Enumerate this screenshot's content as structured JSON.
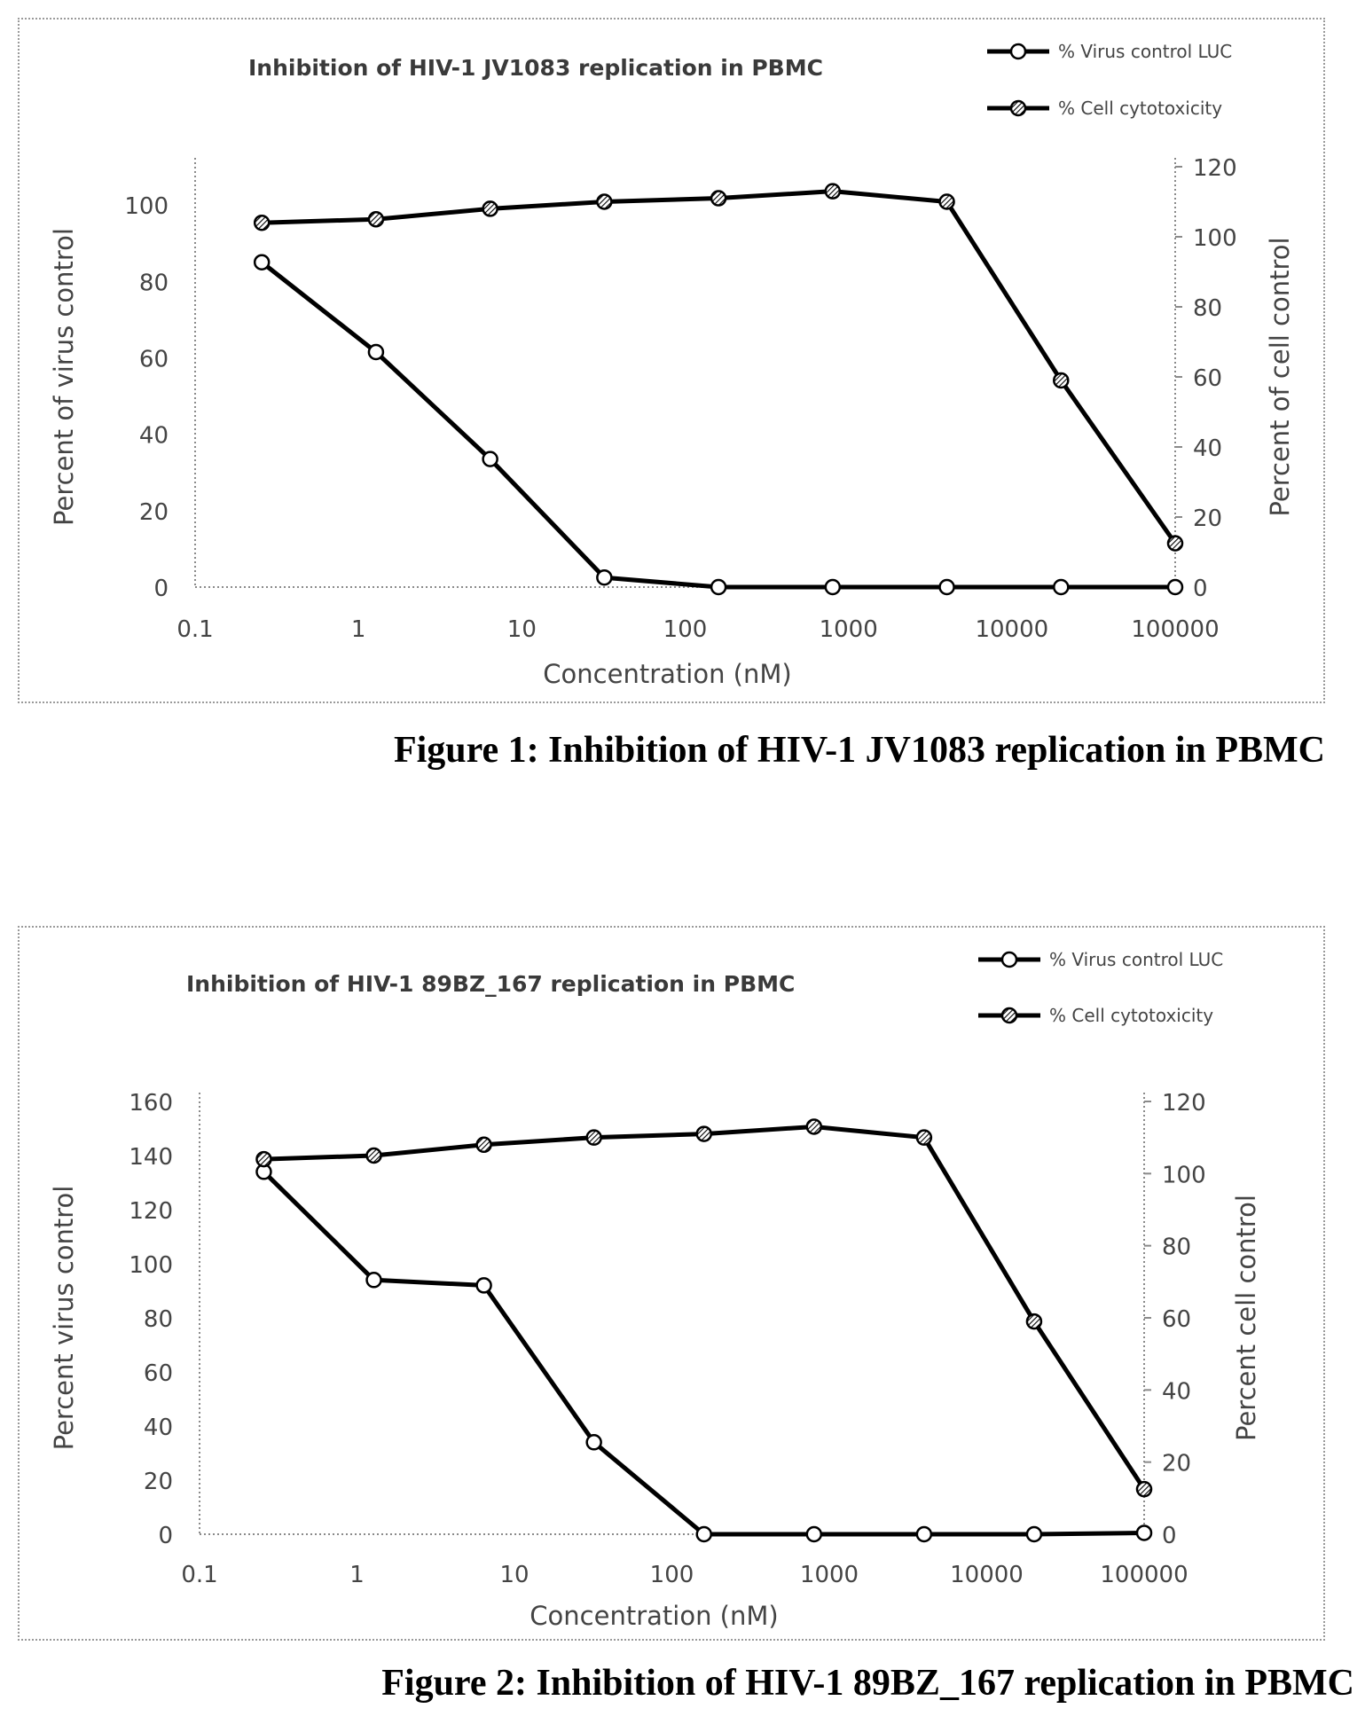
{
  "figures": [
    {
      "caption": "Figure 1: Inhibition of HIV-1 JV1083 replication in PBMC"
    },
    {
      "caption": "Figure 2: Inhibition of HIV-1 89BZ_167 replication in PBMC"
    }
  ],
  "chart_data": [
    {
      "type": "line",
      "title": "Inhibition of HIV-1 JV1083 replication in PBMC",
      "xlabel": "Concentration (nM)",
      "ylabel": "Percent of virus control",
      "y2label": "Percent of cell control",
      "xscale": "log",
      "xlim": [
        0.1,
        100000
      ],
      "x_ticks": [
        "0.1",
        "1",
        "10",
        "100",
        "1000",
        "10000",
        "100000"
      ],
      "ylim": [
        0,
        110
      ],
      "y_ticks": [
        "0",
        "20",
        "40",
        "60",
        "80",
        "100"
      ],
      "y2lim": [
        0,
        120
      ],
      "y2_ticks": [
        "0",
        "20",
        "40",
        "60",
        "80",
        "100",
        "120"
      ],
      "legend_position": "top-right",
      "x": [
        0.256,
        1.28,
        6.4,
        32,
        160,
        800,
        4000,
        20000,
        100000
      ],
      "series": [
        {
          "name": "% Virus control LUC",
          "axis": "left",
          "marker": "open-circle",
          "values": [
            85,
            61.5,
            33.5,
            2.5,
            0,
            0,
            0,
            0,
            0
          ]
        },
        {
          "name": "% Cell cytotoxicity",
          "axis": "right",
          "marker": "hatched-circle",
          "values": [
            104,
            105,
            108,
            110,
            111,
            113,
            110,
            59,
            12.5
          ]
        }
      ]
    },
    {
      "type": "line",
      "title": "Inhibition of HIV-1 89BZ_167 replication in PBMC",
      "xlabel": "Concentration (nM)",
      "ylabel": "Percent virus control",
      "y2label": "Percent cell control",
      "xscale": "log",
      "xlim": [
        0.1,
        100000
      ],
      "x_ticks": [
        "0.1",
        "1",
        "10",
        "100",
        "1000",
        "10000",
        "100000"
      ],
      "ylim": [
        0,
        160
      ],
      "y_ticks": [
        "0",
        "20",
        "40",
        "60",
        "80",
        "100",
        "120",
        "140",
        "160"
      ],
      "y2lim": [
        0,
        120
      ],
      "y2_ticks": [
        "0",
        "20",
        "40",
        "60",
        "80",
        "100",
        "120"
      ],
      "legend_position": "top-right",
      "x": [
        0.256,
        1.28,
        6.4,
        32,
        160,
        800,
        4000,
        20000,
        100000
      ],
      "series": [
        {
          "name": "% Virus control LUC",
          "axis": "left",
          "marker": "open-circle",
          "values": [
            134,
            94,
            92,
            34,
            0,
            0,
            0,
            0,
            0.5
          ]
        },
        {
          "name": "% Cell cytotoxicity",
          "axis": "right",
          "marker": "hatched-circle",
          "values": [
            104,
            105,
            108,
            110,
            111,
            113,
            110,
            59,
            12.5
          ]
        }
      ]
    }
  ]
}
